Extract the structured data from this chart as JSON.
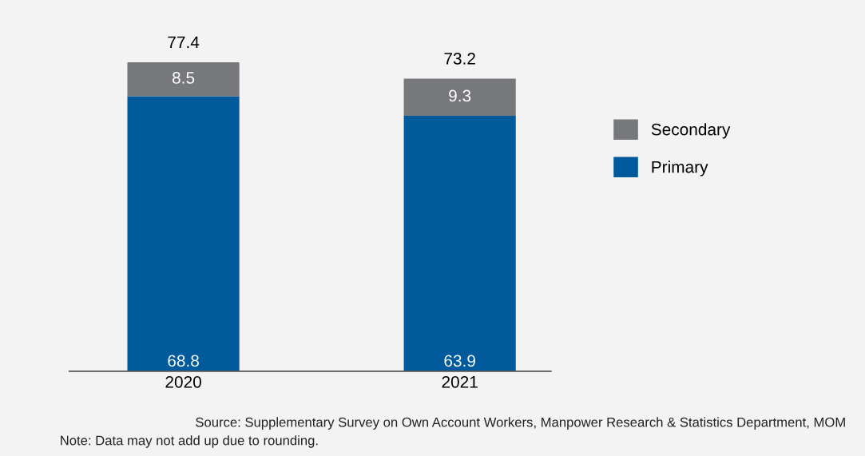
{
  "chart_data": {
    "type": "bar",
    "stacked": true,
    "data_labels": true,
    "legend": "right",
    "grid": false,
    "categories": [
      "2020",
      "2021"
    ],
    "series": [
      {
        "name": "Primary",
        "color": "#005a9c",
        "values": [
          68.8,
          63.9
        ]
      },
      {
        "name": "Secondary",
        "color": "#77787b",
        "values": [
          8.5,
          9.3
        ]
      }
    ],
    "totals": [
      "77.4",
      "73.2"
    ],
    "annotations": [
      "Source: Supplementary Survey on Own Account Workers, Manpower Research & Statistics Department, MOM",
      "Note: Data may not add up due to rounding."
    ]
  }
}
